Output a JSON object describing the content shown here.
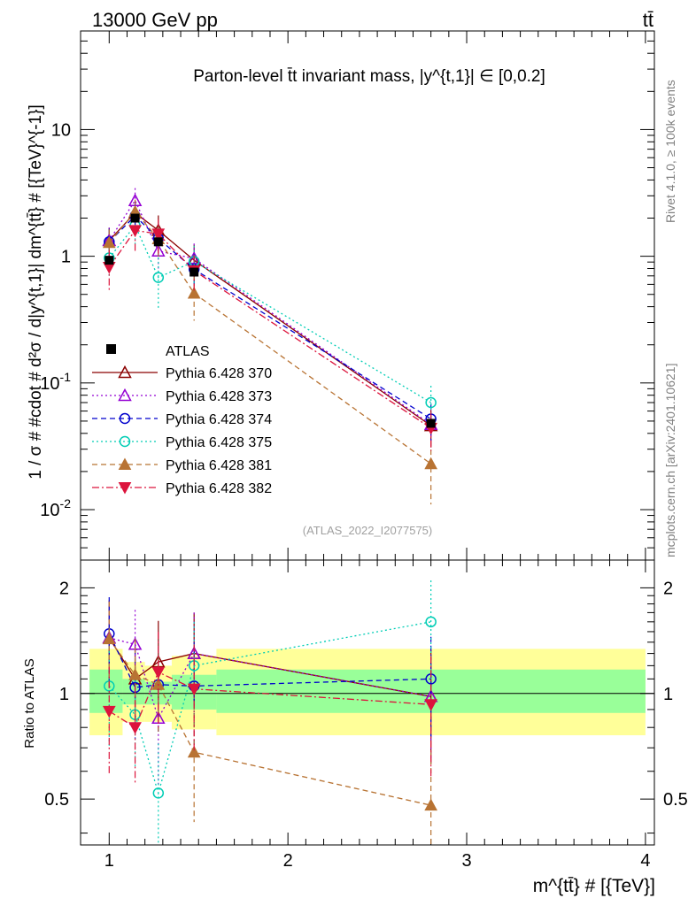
{
  "header": {
    "left": "13000 GeV pp",
    "right": "tt̄"
  },
  "side_labels": {
    "rivet": "Rivet 4.1.0, ≥ 100k events",
    "mcplots": "mcplots.cern.ch [arXiv:2401.10621]"
  },
  "main": {
    "title": "Parton-level t̄t invariant mass, |y^{t,1}| ∈ [0,0.2]",
    "ylabel": "1 / σ # #cdot # d²σ / d|y^{t,1}| dm^{tt̄} # [{TeV}^{-1}]",
    "analysis_id": "(ATLAS_2022_I2077575)",
    "ytick_labels": [
      "10^-2",
      "10^-1",
      "1",
      "10"
    ]
  },
  "ratio": {
    "ylabel": "Ratio to ATLAS",
    "ytick_labels": [
      "0.5",
      "1",
      "2"
    ]
  },
  "xaxis": {
    "label": "m^{tt̄} # [{TeV}]",
    "tick_labels": [
      "1",
      "2",
      "3",
      "4"
    ]
  },
  "chart_data": [
    {
      "type": "scatter",
      "panel": "main",
      "yscale": "log",
      "xlim": [
        0.84,
        4.05
      ],
      "ylim": [
        0.004,
        60
      ],
      "x": [
        1.0,
        1.145,
        1.275,
        1.475,
        2.8
      ],
      "bin_edges": [
        0.89,
        1.075,
        1.2,
        1.35,
        1.6,
        4.0
      ],
      "data": {
        "name": "ATLAS",
        "values": [
          0.93,
          2.0,
          1.3,
          0.75,
          0.048
        ]
      },
      "series": [
        {
          "name": "Pythia 6.428 370",
          "color": "#8b0000",
          "marker": "triangle-up-open",
          "dash": "solid",
          "values": [
            1.33,
            2.2,
            1.6,
            0.93,
            0.046
          ],
          "err": [
            0.35,
            0.55,
            0.5,
            0.3,
            0.015
          ]
        },
        {
          "name": "Pythia 6.428 373",
          "color": "#9400d3",
          "marker": "triangle-up-open",
          "dash": "dot",
          "values": [
            1.33,
            2.75,
            1.1,
            0.96,
            0.047
          ],
          "err": [
            0.35,
            0.7,
            0.35,
            0.3,
            0.016
          ]
        },
        {
          "name": "Pythia 6.428 374",
          "color": "#0000cd",
          "marker": "circle-open",
          "dash": "dash",
          "values": [
            1.3,
            2.08,
            1.38,
            0.79,
            0.052
          ],
          "err": [
            0.35,
            0.55,
            0.4,
            0.25,
            0.017
          ]
        },
        {
          "name": "Pythia 6.428 375",
          "color": "#00cdb5",
          "marker": "circle-open",
          "dash": "dot",
          "values": [
            0.97,
            1.75,
            0.68,
            0.91,
            0.07
          ],
          "err": [
            0.3,
            0.5,
            0.3,
            0.3,
            0.025
          ]
        },
        {
          "name": "Pythia 6.428 381",
          "color": "#b87333",
          "marker": "triangle-up-filled",
          "dash": "dash",
          "values": [
            1.28,
            2.25,
            1.37,
            0.51,
            0.023
          ],
          "err": [
            0.35,
            0.55,
            0.4,
            0.2,
            0.012
          ]
        },
        {
          "name": "Pythia 6.428 382",
          "color": "#dc143c",
          "marker": "triangle-down-filled",
          "dash": "dashdot",
          "values": [
            0.82,
            1.6,
            1.5,
            0.77,
            0.044
          ],
          "err": [
            0.3,
            0.5,
            0.45,
            0.25,
            0.015
          ]
        }
      ]
    },
    {
      "type": "scatter",
      "panel": "ratio",
      "yscale": "log",
      "ylim": [
        0.37,
        2.4
      ],
      "reference_line": 1,
      "bands": {
        "bin_edges": [
          0.89,
          1.075,
          1.2,
          1.35,
          1.6,
          4.0
        ],
        "yellow_lo": [
          0.76,
          0.83,
          0.83,
          0.79,
          0.76
        ],
        "yellow_hi": [
          1.34,
          1.23,
          1.2,
          1.28,
          1.34
        ],
        "green_lo": [
          0.88,
          0.93,
          0.93,
          0.9,
          0.88
        ],
        "green_hi": [
          1.17,
          1.1,
          1.08,
          1.13,
          1.17
        ]
      },
      "series": [
        {
          "name": "Pythia 6.428 370",
          "values": [
            1.44,
            1.1,
            1.23,
            1.3,
            0.98
          ],
          "err": [
            0.4,
            0.3,
            0.38,
            0.4,
            0.35
          ]
        },
        {
          "name": "Pythia 6.428 373",
          "values": [
            1.44,
            1.38,
            0.85,
            1.3,
            0.98
          ],
          "err": [
            0.4,
            0.35,
            0.3,
            0.4,
            0.35
          ]
        },
        {
          "name": "Pythia 6.428 374",
          "values": [
            1.48,
            1.04,
            1.06,
            1.05,
            1.1
          ],
          "err": [
            0.4,
            0.3,
            0.3,
            0.35,
            0.35
          ]
        },
        {
          "name": "Pythia 6.428 375",
          "values": [
            1.05,
            0.87,
            0.52,
            1.2,
            1.6
          ],
          "err": [
            0.35,
            0.25,
            0.2,
            0.4,
            0.5
          ]
        },
        {
          "name": "Pythia 6.428 381",
          "values": [
            1.43,
            1.13,
            1.06,
            0.68,
            0.48
          ],
          "err": [
            0.4,
            0.3,
            0.3,
            0.25,
            0.25
          ]
        },
        {
          "name": "Pythia 6.428 382",
          "values": [
            0.89,
            0.8,
            1.15,
            1.03,
            0.93
          ],
          "err": [
            0.3,
            0.25,
            0.35,
            0.35,
            0.35
          ]
        }
      ]
    }
  ]
}
